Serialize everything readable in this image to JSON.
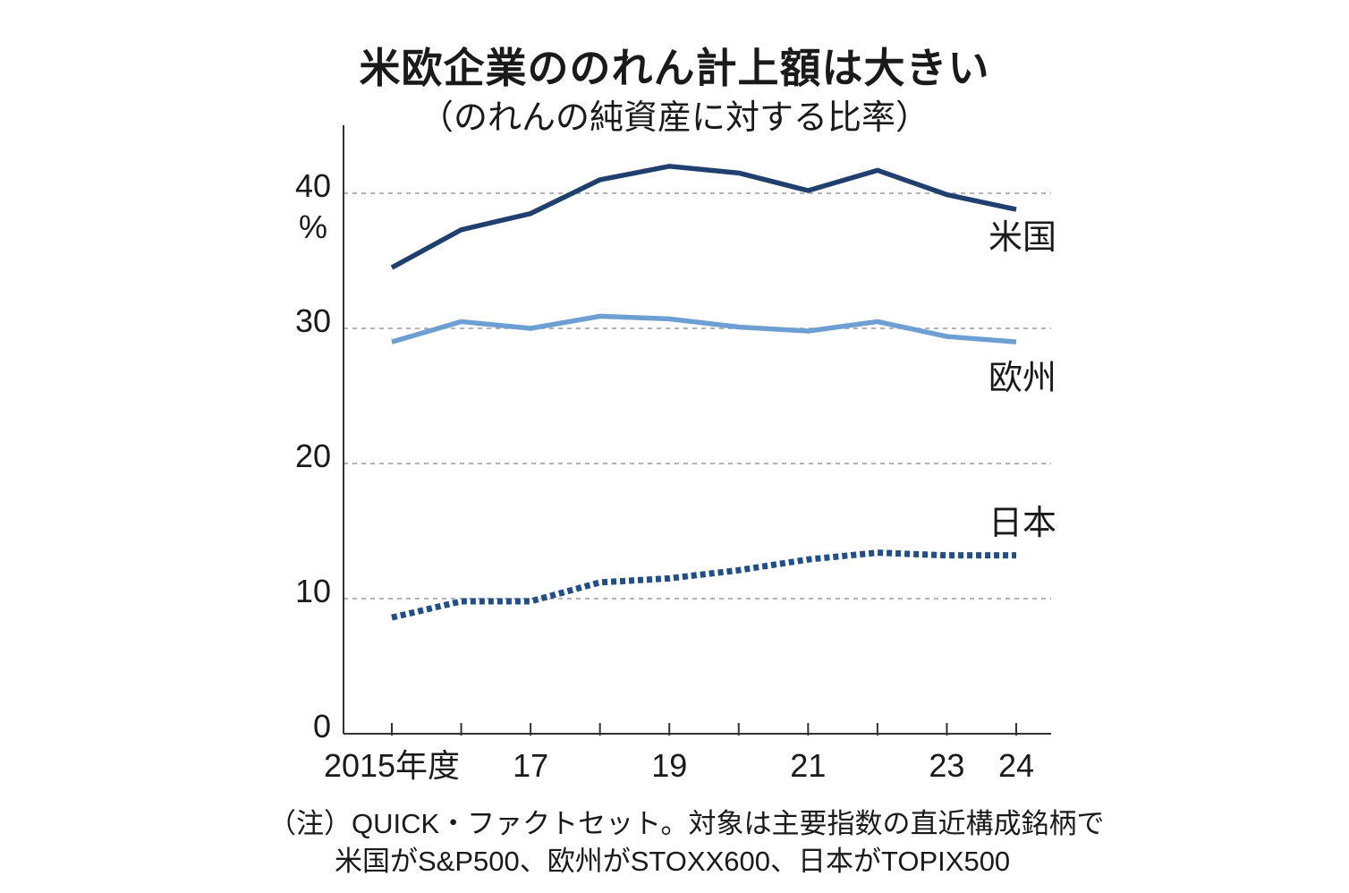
{
  "chart_data": {
    "type": "line",
    "title": "米欧企業ののれん計上額は大きい",
    "subtitle": "（のれんの純資産に対する比率）",
    "ylabel": "%",
    "ylim": [
      0,
      45
    ],
    "yticks": [
      0,
      10,
      20,
      30,
      40
    ],
    "grid": true,
    "x": [
      2015,
      2016,
      2017,
      2018,
      2019,
      2020,
      2021,
      2022,
      2023,
      2024
    ],
    "xtick_labels": [
      {
        "x": 2015,
        "label": "2015年度"
      },
      {
        "x": 2017,
        "label": "17"
      },
      {
        "x": 2019,
        "label": "19"
      },
      {
        "x": 2021,
        "label": "21"
      },
      {
        "x": 2023,
        "label": "23"
      },
      {
        "x": 2024,
        "label": "24"
      }
    ],
    "series": [
      {
        "name": "米国",
        "color": "#1f3f6e",
        "style": "solid",
        "values": [
          34.5,
          37.3,
          38.5,
          41.0,
          42.0,
          41.5,
          40.2,
          41.7,
          39.9,
          38.8
        ]
      },
      {
        "name": "欧州",
        "color": "#6d9fd3",
        "style": "solid",
        "values": [
          29.0,
          30.5,
          30.0,
          30.9,
          30.7,
          30.1,
          29.8,
          30.5,
          29.4,
          29.0
        ]
      },
      {
        "name": "日本",
        "color": "#1f4e8a",
        "style": "dotted",
        "values": [
          8.6,
          9.8,
          9.8,
          11.2,
          11.5,
          12.1,
          12.9,
          13.4,
          13.2,
          13.2
        ]
      }
    ]
  },
  "note": {
    "line1": "（注）QUICK・ファクトセット。対象は主要指数の直近構成銘柄で",
    "line2": "米国がS&P500、欧州がSTOXX600、日本がTOPIX500"
  }
}
